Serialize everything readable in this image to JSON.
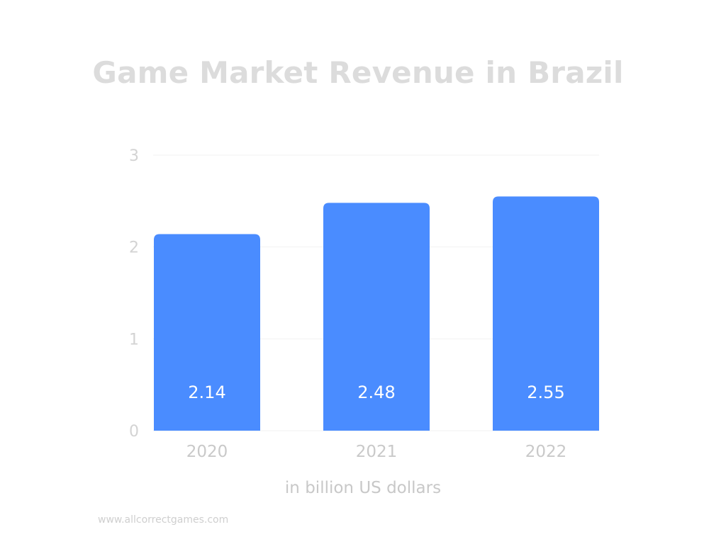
{
  "chart_data": {
    "type": "bar",
    "title": "Game Market Revenue in Brazil",
    "categories": [
      "2020",
      "2021",
      "2022"
    ],
    "values": [
      2.14,
      2.48,
      2.55
    ],
    "value_labels": [
      "2.14",
      "2.48",
      "2.55"
    ],
    "yticks": [
      0,
      1,
      2,
      3
    ],
    "ylim": [
      0,
      3
    ],
    "unit_label": "in billion US dollars",
    "grid": true,
    "legend": "none",
    "colors": {
      "bar": "#4a8cff",
      "title": "#dcdcdc",
      "grid": "#f2f2f2",
      "axis_text": "#d3d3d3"
    }
  },
  "watermark": "www.allcorrectgames.com"
}
